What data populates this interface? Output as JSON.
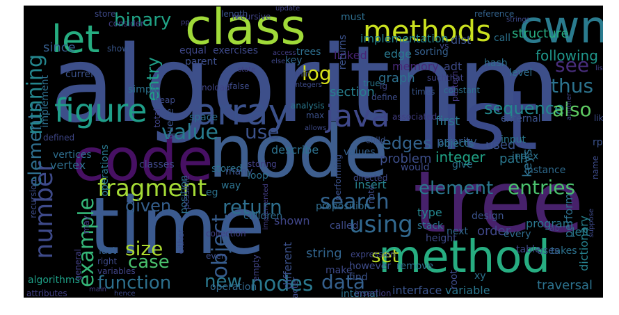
{
  "words": [
    {
      "text": "algorithm",
      "color": "#3d4f8a"
    },
    {
      "text": "node",
      "color": "#3e5e8e"
    },
    {
      "text": "list",
      "color": "#3a4a89"
    },
    {
      "text": "tree",
      "color": "#47216b"
    },
    {
      "text": "time",
      "color": "#3b5a8f"
    },
    {
      "text": "code",
      "color": "#471063"
    },
    {
      "text": "class",
      "color": "#a0da39"
    },
    {
      "text": "method",
      "color": "#27ad81"
    },
    {
      "text": "cwnd",
      "color": "#2a7b8e"
    },
    {
      "text": "methods",
      "color": "#cae11f"
    },
    {
      "text": "array",
      "color": "#3b518b"
    },
    {
      "text": "figure",
      "color": "#1f9e89"
    },
    {
      "text": "java",
      "color": "#3f4889"
    },
    {
      "text": "let",
      "color": "#26ad81"
    },
    {
      "text": "fragment",
      "color": "#a5db36"
    },
    {
      "text": "number",
      "color": "#3e4a89"
    },
    {
      "text": "elements",
      "color": "#2e6e8e"
    },
    {
      "text": "example",
      "color": "#35b779"
    },
    {
      "text": "function",
      "color": "#2d708e"
    },
    {
      "text": "using",
      "color": "#31688e"
    },
    {
      "text": "search",
      "color": "#33638d"
    },
    {
      "text": "nodes",
      "color": "#2a788e"
    },
    {
      "text": "data",
      "color": "#35608d"
    },
    {
      "text": "object",
      "color": "#365c8d"
    },
    {
      "text": "return",
      "color": "#2e6f8e"
    },
    {
      "text": "binary",
      "color": "#20a386"
    },
    {
      "text": "running",
      "color": "#24868e"
    },
    {
      "text": "value",
      "color": "#287c8e"
    },
    {
      "text": "entries",
      "color": "#4ac16d"
    },
    {
      "text": "element",
      "color": "#2a788e"
    },
    {
      "text": "use",
      "color": "#3b528b"
    },
    {
      "text": "log",
      "color": "#d8e219"
    },
    {
      "text": "thus",
      "color": "#2c738e"
    },
    {
      "text": "sequence",
      "color": "#23898e"
    },
    {
      "text": "also",
      "color": "#5ec962"
    },
    {
      "text": "see",
      "color": "#472d7b"
    },
    {
      "text": "entry",
      "color": "#1fa088"
    },
    {
      "text": "given",
      "color": "#355f8d"
    },
    {
      "text": "size",
      "color": "#addc30"
    },
    {
      "text": "case",
      "color": "#4ac16d"
    },
    {
      "text": "set",
      "color": "#bddf26"
    },
    {
      "text": "new",
      "color": "#2a788e"
    },
    {
      "text": "edges",
      "color": "#33638d"
    },
    {
      "text": "structure",
      "color": "#27ad81"
    },
    {
      "text": "implementation",
      "color": "#25848e"
    },
    {
      "text": "dist",
      "color": "#3b528b"
    },
    {
      "text": "following",
      "color": "#1f968b"
    },
    {
      "text": "since",
      "color": "#365d8d"
    },
    {
      "text": "graph",
      "color": "#2d708e"
    },
    {
      "text": "section",
      "color": "#277f8e"
    },
    {
      "text": "trees",
      "color": "#2e6f8e"
    },
    {
      "text": "linked",
      "color": "#482475"
    },
    {
      "text": "edge",
      "color": "#2a788e"
    },
    {
      "text": "must",
      "color": "#2e6e8e"
    },
    {
      "text": "memory",
      "color": "#482878"
    },
    {
      "text": "key",
      "color": "#31688e"
    },
    {
      "text": "exercises",
      "color": "#3e4989"
    },
    {
      "text": "priority",
      "color": "#38588c"
    },
    {
      "text": "first",
      "color": "#2a768e"
    },
    {
      "text": "used",
      "color": "#3b528b"
    },
    {
      "text": "integer",
      "color": "#20a386"
    },
    {
      "text": "objects",
      "color": "#2c728e"
    },
    {
      "text": "path",
      "color": "#2a788e"
    },
    {
      "text": "keys",
      "color": "#2d708e"
    },
    {
      "text": "index",
      "color": "#2c728e"
    },
    {
      "text": "problem",
      "color": "#3d4e8a"
    },
    {
      "text": "describe",
      "color": "#2d718e"
    },
    {
      "text": "proposition",
      "color": "#2f6c8e"
    },
    {
      "text": "insert",
      "color": "#26818e"
    },
    {
      "text": "called",
      "color": "#3e4c8a"
    },
    {
      "text": "type",
      "color": "#24868e"
    },
    {
      "text": "stack",
      "color": "#2c728e"
    },
    {
      "text": "order",
      "color": "#3f4788"
    },
    {
      "text": "program",
      "color": "#2a768e"
    },
    {
      "text": "left",
      "color": "#29798e"
    },
    {
      "text": "every",
      "color": "#2f6b8e"
    },
    {
      "text": "perform",
      "color": "#2d708e"
    },
    {
      "text": "dictionary",
      "color": "#26818e"
    },
    {
      "text": "traversal",
      "color": "#2c728e"
    },
    {
      "text": "interface",
      "color": "#3a548c"
    },
    {
      "text": "variable",
      "color": "#2a768e"
    },
    {
      "text": "string",
      "color": "#32658e"
    },
    {
      "text": "operation",
      "color": "#31688e"
    },
    {
      "text": "different",
      "color": "#3b518b"
    },
    {
      "text": "shown",
      "color": "#404688"
    },
    {
      "text": "children",
      "color": "#2f6b8e"
    },
    {
      "text": "position",
      "color": "#2c718e"
    },
    {
      "text": "algorithms",
      "color": "#1fa188"
    },
    {
      "text": "recursion",
      "color": "#3d4d8a"
    },
    {
      "text": "vertex",
      "color": "#2e6f8e"
    },
    {
      "text": "vertices",
      "color": "#2e6e8e"
    },
    {
      "text": "queue",
      "color": "#3b528b"
    },
    {
      "text": "classes",
      "color": "#3f4889"
    },
    {
      "text": "stored",
      "color": "#2c728e"
    },
    {
      "text": "operations",
      "color": "#2a788e"
    },
    {
      "text": "implement",
      "color": "#2e6f8e"
    },
    {
      "text": "current",
      "color": "#3b528b"
    },
    {
      "text": "defined",
      "color": "#3f4788"
    },
    {
      "text": "store",
      "color": "#3e4a89"
    },
    {
      "text": "length",
      "color": "#3a538b"
    },
    {
      "text": "recursive",
      "color": "#414487"
    },
    {
      "text": "returns",
      "color": "#3b528b"
    },
    {
      "text": "reference",
      "color": "#33638d"
    },
    {
      "text": "hash",
      "color": "#2e6f8e"
    },
    {
      "text": "level",
      "color": "#2e6e8e"
    },
    {
      "text": "call",
      "color": "#2c728e"
    },
    {
      "text": "equal",
      "color": "#3f4788"
    },
    {
      "text": "parent",
      "color": "#3d4e8a"
    },
    {
      "text": "show",
      "color": "#39568c"
    },
    {
      "text": "consider",
      "color": "#433e85"
    },
    {
      "text": "simple",
      "color": "#2c728e"
    },
    {
      "text": "heap",
      "color": "#3e4c8a"
    },
    {
      "text": "space",
      "color": "#2d708e"
    },
    {
      "text": "false",
      "color": "#3e4c8a"
    },
    {
      "text": "analysis",
      "color": "#2a788e"
    },
    {
      "text": "max",
      "color": "#3b518b"
    },
    {
      "text": "times",
      "color": "#39568c"
    },
    {
      "text": "define",
      "color": "#3d4d8a"
    },
    {
      "text": "constant",
      "color": "#2d708e"
    },
    {
      "text": "sorting",
      "color": "#355f8d"
    },
    {
      "text": "true",
      "color": "#2a778e"
    },
    {
      "text": "adt",
      "color": "#3e4a89"
    },
    {
      "text": "pattern",
      "color": "#443983"
    },
    {
      "text": "external",
      "color": "#3b528b"
    },
    {
      "text": "like",
      "color": "#3d4d8a"
    },
    {
      "text": "input",
      "color": "#2a788e"
    },
    {
      "text": "instance",
      "color": "#2f6b8e"
    },
    {
      "text": "give",
      "color": "#2c728e"
    },
    {
      "text": "would",
      "color": "#3e4c8a"
    },
    {
      "text": "values",
      "color": "#35608d"
    },
    {
      "text": "child",
      "color": "#3b528b"
    },
    {
      "text": "associated",
      "color": "#433e85"
    },
    {
      "text": "total",
      "color": "#414487"
    },
    {
      "text": "many",
      "color": "#3b528b"
    },
    {
      "text": "loop",
      "color": "#2d708e"
    },
    {
      "text": "eg",
      "color": "#2c728e"
    },
    {
      "text": "way",
      "color": "#2c728e"
    },
    {
      "text": "possible",
      "color": "#3e4989"
    },
    {
      "text": "collection",
      "color": "#424086"
    },
    {
      "text": "storing",
      "color": "#424086"
    },
    {
      "text": "performing",
      "color": "#3b518b"
    },
    {
      "text": "directed",
      "color": "#3e4989"
    },
    {
      "text": "design",
      "color": "#3b528b"
    },
    {
      "text": "next",
      "color": "#31688e"
    },
    {
      "text": "height",
      "color": "#3e4a89"
    },
    {
      "text": "remove",
      "color": "#2e6f8e"
    },
    {
      "text": "table",
      "color": "#3f4788"
    },
    {
      "text": "takes",
      "color": "#2c728e"
    },
    {
      "text": "uses",
      "color": "#39568c"
    },
    {
      "text": "root",
      "color": "#3e4c8a"
    },
    {
      "text": "xy",
      "color": "#2c728e"
    },
    {
      "text": "make",
      "color": "#3e4a89"
    },
    {
      "text": "find",
      "color": "#3b528b"
    },
    {
      "text": "however",
      "color": "#3e4c8a"
    },
    {
      "text": "internal",
      "color": "#2c728e"
    },
    {
      "text": "insertion",
      "color": "#433e85"
    },
    {
      "text": "character",
      "color": "#3e4a89"
    },
    {
      "text": "expression",
      "color": "#3f4788"
    },
    {
      "text": "empty",
      "color": "#414487"
    },
    {
      "text": "last",
      "color": "#35608d"
    },
    {
      "text": "right",
      "color": "#3e4a89"
    },
    {
      "text": "variables",
      "color": "#414487"
    },
    {
      "text": "general",
      "color": "#424086"
    },
    {
      "text": "may",
      "color": "#443983"
    },
    {
      "text": "either",
      "color": "#3e4a89"
    },
    {
      "text": "even",
      "color": "#3d4e8a"
    },
    {
      "text": "main",
      "color": "#433e85"
    },
    {
      "text": "attributes",
      "color": "#424086"
    },
    {
      "text": "hence",
      "color": "#3e4a89"
    },
    {
      "text": "update",
      "color": "#414487"
    },
    {
      "text": "access",
      "color": "#433e85"
    },
    {
      "text": "else",
      "color": "#3f4788"
    },
    {
      "text": "integers",
      "color": "#3e4c8a"
    },
    {
      "text": "state",
      "color": "#424086"
    },
    {
      "text": "noload",
      "color": "#414487"
    },
    {
      "text": "implemented",
      "color": "#433e85"
    },
    {
      "text": "strings",
      "color": "#3e4a89"
    },
    {
      "text": "lg",
      "color": "#3f4788"
    },
    {
      "text": "lists",
      "color": "#424086"
    },
    {
      "text": "another",
      "color": "#414487"
    },
    {
      "text": "suppose",
      "color": "#3e4a89"
    },
    {
      "text": "name",
      "color": "#3e4c8a"
    },
    {
      "text": "rp",
      "color": "#3b528b"
    },
    {
      "text": "ab",
      "color": "#424086"
    },
    {
      "text": "allows",
      "color": "#3e4a89"
    },
    {
      "text": "suchthat",
      "color": "#414487"
    },
    {
      "text": "vs",
      "color": "#3f4788"
    },
    {
      "text": "pp",
      "color": "#424086"
    },
    {
      "text": "min",
      "color": "#3e4a89"
    },
    {
      "text": "note",
      "color": "#3e4c8a"
    }
  ]
}
